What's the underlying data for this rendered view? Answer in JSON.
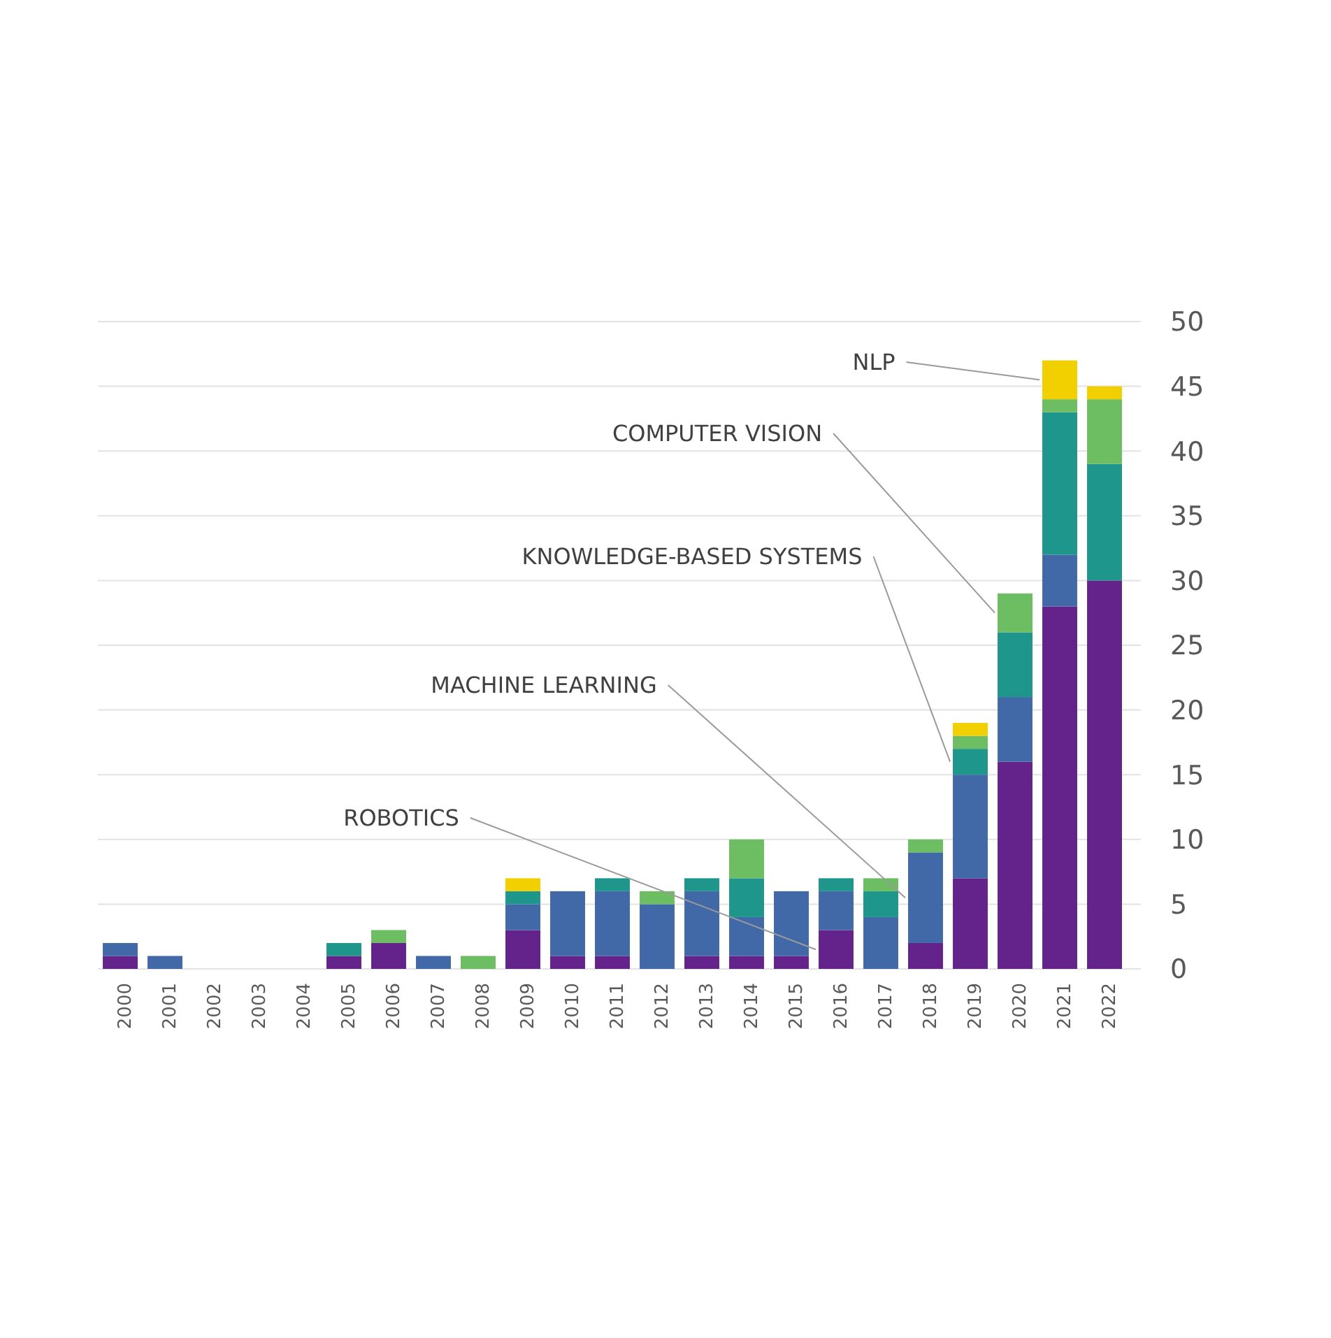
{
  "chart_data": {
    "type": "bar",
    "stacked": true,
    "categories": [
      "2000",
      "2001",
      "2002",
      "2003",
      "2004",
      "2005",
      "2006",
      "2007",
      "2008",
      "2009",
      "2010",
      "2011",
      "2012",
      "2013",
      "2014",
      "2015",
      "2016",
      "2017",
      "2018",
      "2019",
      "2020",
      "2021",
      "2022"
    ],
    "series": [
      {
        "name": "ROBOTICS",
        "color": "#63238b",
        "values": [
          1,
          0,
          0,
          0,
          0,
          1,
          2,
          0,
          0,
          3,
          1,
          1,
          0,
          1,
          1,
          1,
          3,
          0,
          2,
          7,
          16,
          28,
          30
        ]
      },
      {
        "name": "MACHINE LEARNING",
        "color": "#4169a8",
        "values": [
          1,
          1,
          0,
          0,
          0,
          0,
          0,
          1,
          0,
          2,
          5,
          5,
          5,
          5,
          3,
          5,
          3,
          4,
          7,
          8,
          5,
          4,
          0
        ]
      },
      {
        "name": "KNOWLEDGE-BASED SYSTEMS",
        "color": "#1f968b",
        "values": [
          0,
          0,
          0,
          0,
          0,
          1,
          0,
          0,
          0,
          1,
          0,
          1,
          0,
          1,
          3,
          0,
          1,
          2,
          0,
          2,
          5,
          11,
          9
        ]
      },
      {
        "name": "COMPUTER VISION",
        "color": "#6dbd63",
        "values": [
          0,
          0,
          0,
          0,
          0,
          0,
          1,
          0,
          1,
          0,
          0,
          0,
          1,
          0,
          3,
          0,
          0,
          1,
          1,
          1,
          3,
          1,
          5
        ]
      },
      {
        "name": "NLP",
        "color": "#f2d000",
        "values": [
          0,
          0,
          0,
          0,
          0,
          0,
          0,
          0,
          0,
          1,
          0,
          0,
          0,
          0,
          0,
          0,
          0,
          0,
          0,
          1,
          0,
          3,
          1
        ]
      }
    ],
    "ylim": [
      0,
      50
    ],
    "yticks": [
      0,
      5,
      10,
      15,
      20,
      25,
      30,
      35,
      40,
      45,
      50
    ],
    "grid": "y"
  }
}
